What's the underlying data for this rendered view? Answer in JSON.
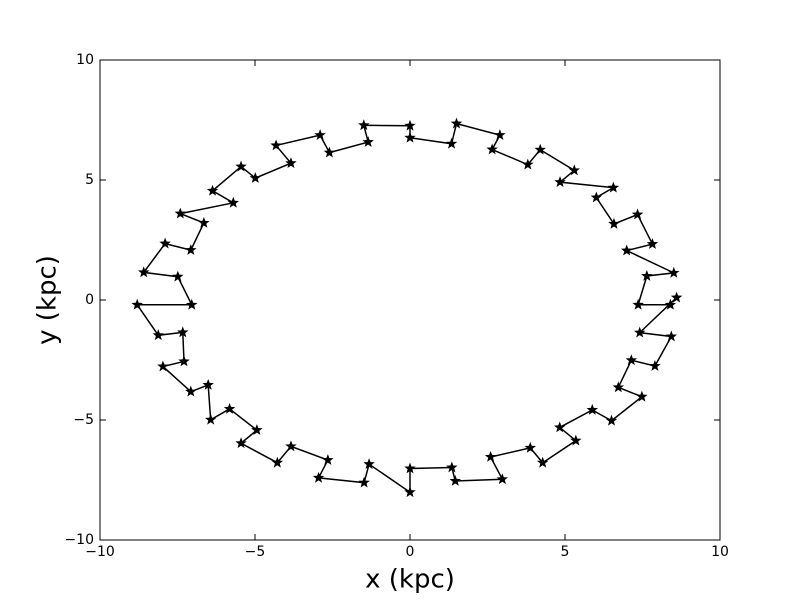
{
  "chart_data": {
    "type": "line",
    "marker": "star",
    "color": "#000000",
    "xlabel": "x (kpc)",
    "ylabel": "y (kpc)",
    "xlim": [
      -10,
      10
    ],
    "ylim": [
      -10,
      10
    ],
    "xticks": [
      {
        "value": -10,
        "label": "−10"
      },
      {
        "value": -5,
        "label": "−5"
      },
      0,
      5,
      10
    ],
    "yticks": [
      {
        "value": -10,
        "label": "−10"
      },
      {
        "value": -5,
        "label": "−5"
      },
      0,
      5,
      10
    ],
    "grid": false,
    "x": [
      8.4,
      7.36,
      7.64,
      8.51,
      6.99,
      7.82,
      7.34,
      6.58,
      6.01,
      6.56,
      4.84,
      5.3,
      4.2,
      3.8,
      2.65,
      2.9,
      1.5,
      1.34,
      0,
      0,
      -1.49,
      -1.35,
      -2.6,
      -2.9,
      -4.32,
      -3.84,
      -4.99,
      -5.45,
      -6.37,
      -5.7,
      -7.41,
      -6.65,
      -7.07,
      -7.9,
      -8.59,
      -7.49,
      -7.04,
      -8.8,
      -8.12,
      -7.33,
      -7.29,
      -7.97,
      -7.07,
      -6.51,
      -6.43,
      -5.82,
      -4.94,
      -5.45,
      -4.28,
      -3.84,
      -2.65,
      -2.95,
      -1.48,
      -1.32,
      0,
      0,
      1.35,
      1.46,
      2.98,
      2.6,
      3.88,
      4.28,
      5.35,
      4.83,
      5.88,
      6.5,
      7.48,
      6.72,
      7.14,
      7.9,
      8.43,
      7.41,
      8.6
    ],
    "values": [
      -0.2,
      -0.2,
      1.0,
      1.13,
      2.06,
      2.33,
      3.56,
      3.17,
      4.27,
      4.68,
      4.91,
      5.4,
      6.26,
      5.64,
      6.27,
      6.87,
      7.35,
      6.51,
      6.76,
      7.26,
      7.28,
      6.58,
      6.14,
      6.87,
      6.44,
      5.7,
      5.08,
      5.56,
      4.55,
      4.05,
      3.6,
      3.21,
      2.08,
      2.35,
      1.15,
      0.97,
      -0.2,
      -0.2,
      -1.47,
      -1.35,
      -2.56,
      -2.77,
      -3.82,
      -3.54,
      -4.99,
      -4.54,
      -5.42,
      -5.97,
      -6.78,
      -6.1,
      -6.67,
      -7.41,
      -7.61,
      -6.84,
      -8.01,
      -7.02,
      -6.98,
      -7.54,
      -7.47,
      -6.54,
      -6.16,
      -6.78,
      -5.86,
      -5.31,
      -4.58,
      -5.03,
      -4.03,
      -3.64,
      -2.51,
      -2.75,
      -1.52,
      -1.36,
      0.1
    ]
  }
}
